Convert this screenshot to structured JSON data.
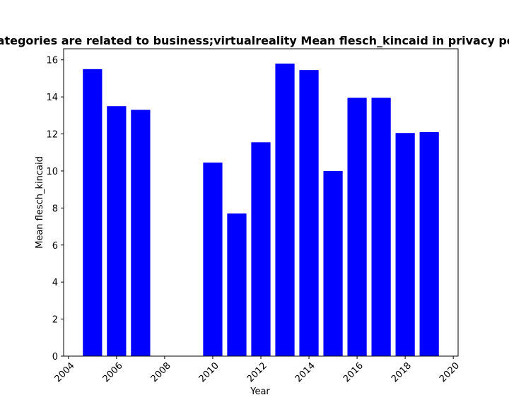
{
  "chart_data": {
    "type": "bar",
    "title": "Categories are related to business;virtualreality Mean flesch_kincaid in privacy policies",
    "xlabel": "Year",
    "ylabel": "Mean flesch_kincaid",
    "x": [
      2005,
      2006,
      2007,
      2010,
      2011,
      2012,
      2013,
      2014,
      2015,
      2016,
      2017,
      2018,
      2019
    ],
    "values": [
      15.5,
      13.5,
      13.3,
      10.45,
      7.7,
      11.55,
      15.8,
      15.45,
      10.0,
      13.95,
      13.95,
      12.05,
      12.1
    ],
    "xlim": [
      2003.8,
      2020.2
    ],
    "ylim": [
      0,
      16.6
    ],
    "xticks": [
      "2004",
      "2006",
      "2008",
      "2010",
      "2012",
      "2014",
      "2016",
      "2018",
      "2020"
    ],
    "yticks": [
      "0",
      "2",
      "4",
      "6",
      "8",
      "10",
      "12",
      "14",
      "16"
    ],
    "bar_color": "#0000ff",
    "grid": false,
    "legend": "none"
  }
}
